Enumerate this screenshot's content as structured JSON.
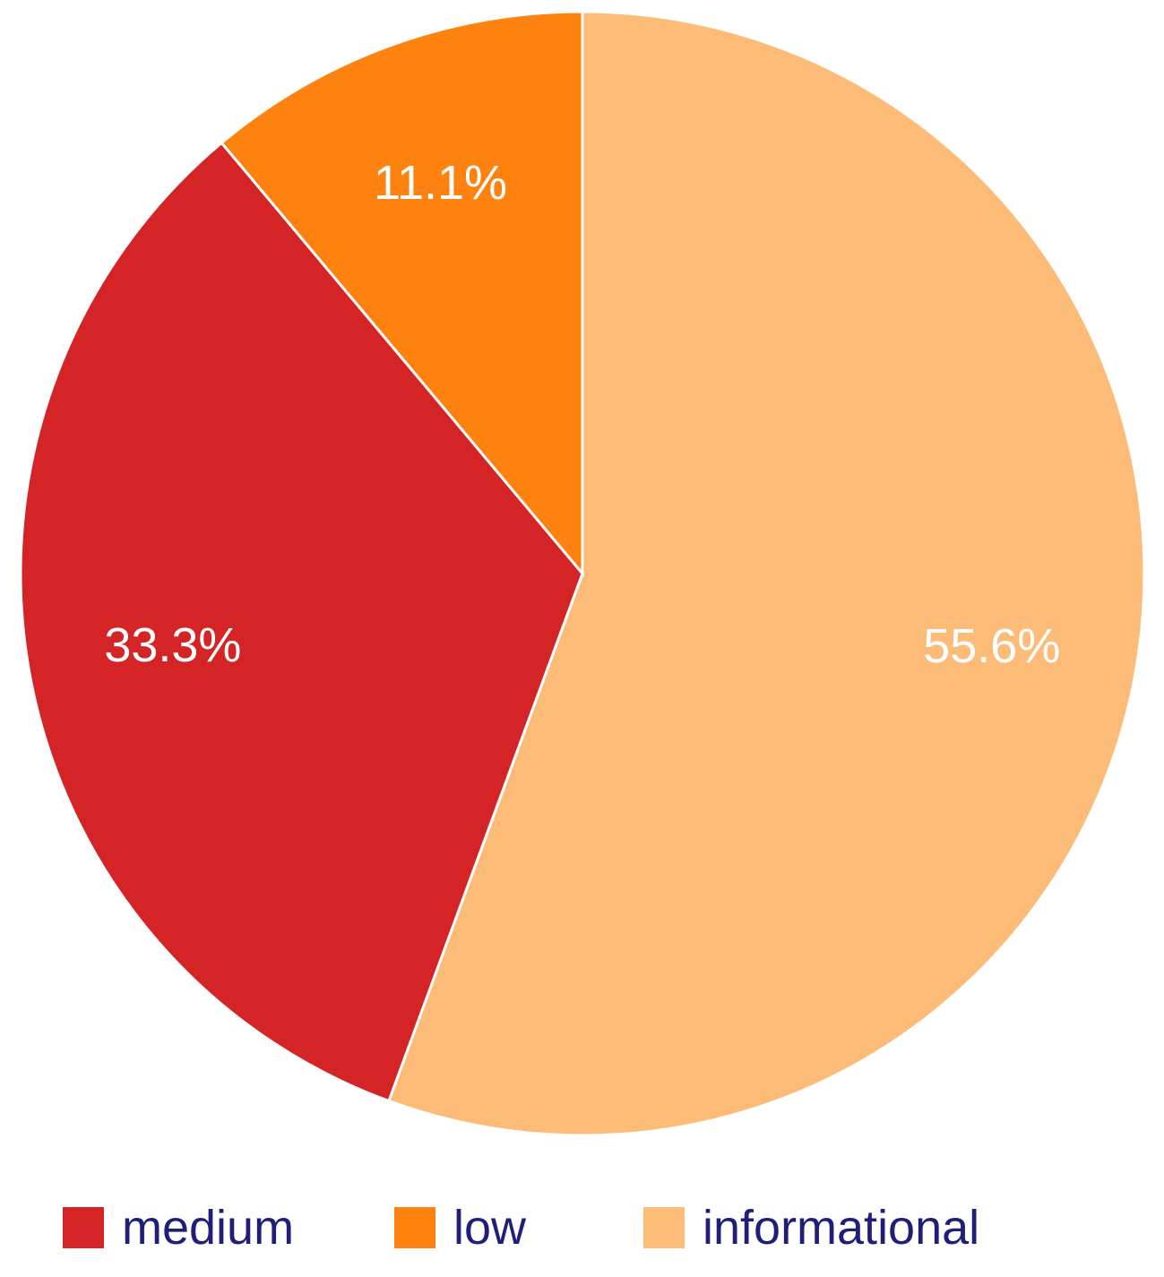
{
  "chart_data": {
    "type": "pie",
    "start_angle_deg": 0,
    "direction": "clockwise",
    "slices": [
      {
        "label": "informational",
        "value": 55.6,
        "display": "55.6%",
        "color": "#fdbb78"
      },
      {
        "label": "medium",
        "value": 33.3,
        "display": "33.3%",
        "color": "#d42426"
      },
      {
        "label": "low",
        "value": 11.1,
        "display": "11.1%",
        "color": "#fd8210"
      }
    ],
    "legend": {
      "position": "bottom",
      "entries": [
        {
          "label": "medium",
          "color": "#d42426"
        },
        {
          "label": "low",
          "color": "#fd8210"
        },
        {
          "label": "informational",
          "color": "#fdbb78"
        }
      ]
    },
    "label_color": "#ffffff",
    "legend_text_color": "#1f1f7a"
  }
}
